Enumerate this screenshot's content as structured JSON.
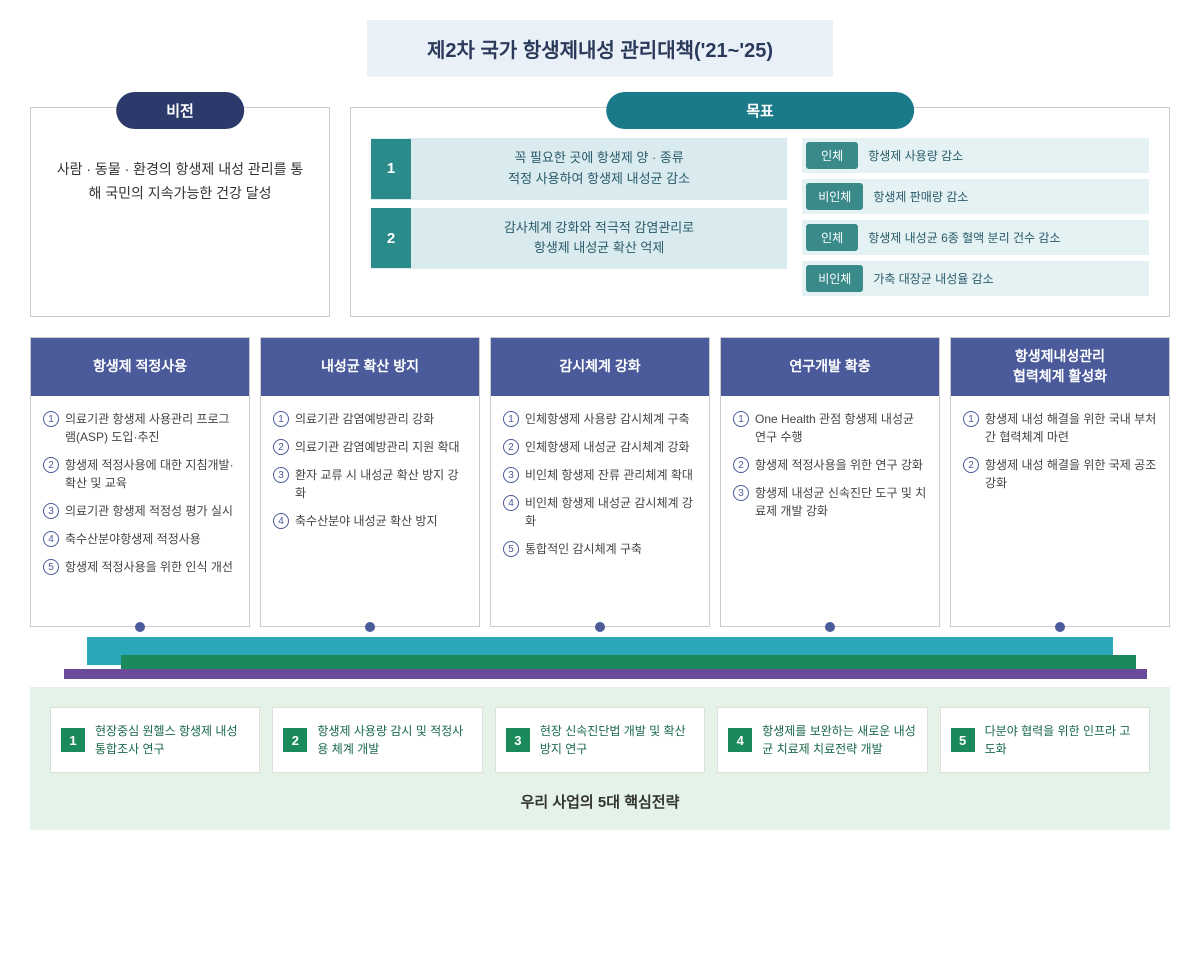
{
  "title": "제2차 국가 항생제내성 관리대책('21~'25)",
  "vision": {
    "header": "비전",
    "text": "사람 · 동물 · 환경의 항생제 내성 관리를 통해 국민의 지속가능한 건강 달성"
  },
  "goals": {
    "header": "목표",
    "left": [
      {
        "num": "1",
        "text": "꼭 필요한 곳에 항생제 양 · 종류\n적정 사용하여 항생제 내성균 감소"
      },
      {
        "num": "2",
        "text": "감사체계 강화와 적극적 감염관리로\n항생제 내성균 확산 억제"
      }
    ],
    "right": [
      {
        "tag": "인체",
        "text": "항생제 사용량 감소"
      },
      {
        "tag": "비인체",
        "text": "항생제 판매량 감소"
      },
      {
        "tag": "인체",
        "text": "항생제 내성균 6종 혈액 분리 건수 감소"
      },
      {
        "tag": "비인체",
        "text": "가축 대장균 내성율 감소"
      }
    ]
  },
  "pillars": [
    {
      "title": "항생제 적정사용",
      "items": [
        "의료기관 항생제 사용관리 프로그램(ASP) 도입·추진",
        "항생제 적정사용에 대한 지침개발·확산 및 교육",
        "의료기관 항생제 적정성 평가 실시",
        "축수산분야항생제 적정사용",
        "항생제 적정사용을 위한 인식 개선"
      ]
    },
    {
      "title": "내성균 확산 방지",
      "items": [
        "의료기관 감염예방관리 강화",
        "의료기관 감염예방관리 지원 확대",
        "환자 교류 시 내성균 확산 방지 강화",
        "축수산분야 내성균 확산 방지"
      ]
    },
    {
      "title": "감시체계 강화",
      "items": [
        "인체항생제 사용량 감시체계 구축",
        "인체항생제 내성균 감시체계 강화",
        "비인체 항생제 잔류 관리체계 확대",
        "비인체 항생제 내성균 감시체계 강화",
        "통합적인 감시체계 구축"
      ]
    },
    {
      "title": "연구개발 확충",
      "items": [
        "One Health 관점 항생제 내성균 연구 수행",
        "항생제 적정사용을 위한 연구 강화",
        "항생제 내성균 신속진단 도구 및 치료제 개발 강화"
      ]
    },
    {
      "title": "항생제내성관리\n협력체계 활성화",
      "items": [
        "항생제 내성 해결을 위한 국내 부처간 협력체계 마련",
        "항생제 내성 해결을 위한 국제 공조 강화"
      ]
    }
  ],
  "strategies": {
    "title": "우리 사업의 5대 핵심전략",
    "items": [
      {
        "num": "1",
        "text": "현장중심 원헬스 항생제 내성 통합조사 연구"
      },
      {
        "num": "2",
        "text": "항생제 사용량 감시 및 적정사용 체계 개발"
      },
      {
        "num": "3",
        "text": "현장 신속진단법 개발 및 확산방지 연구"
      },
      {
        "num": "4",
        "text": "항생제를 보완하는 새로운 내성균 치료제 치료전략 개발"
      },
      {
        "num": "5",
        "text": "다분야 협력을 위한 인프라 고도화"
      }
    ]
  },
  "colors": {
    "title_bg": "#e9f0f7",
    "vision_header": "#2b3a6b",
    "goals_header": "#1a7a8a",
    "goal_num_bg": "#2b8a8a",
    "goal_item_bg": "#d9ebee",
    "goal_tag_bg": "#3a8a8a",
    "pillar_header": "#4a5a9a",
    "band_teal": "#2aa8b8",
    "band_green": "#1a8a5a",
    "band_purple": "#6a4a9a",
    "strategies_bg": "#e5f2e8",
    "strategy_num_bg": "#1a8a5a"
  }
}
